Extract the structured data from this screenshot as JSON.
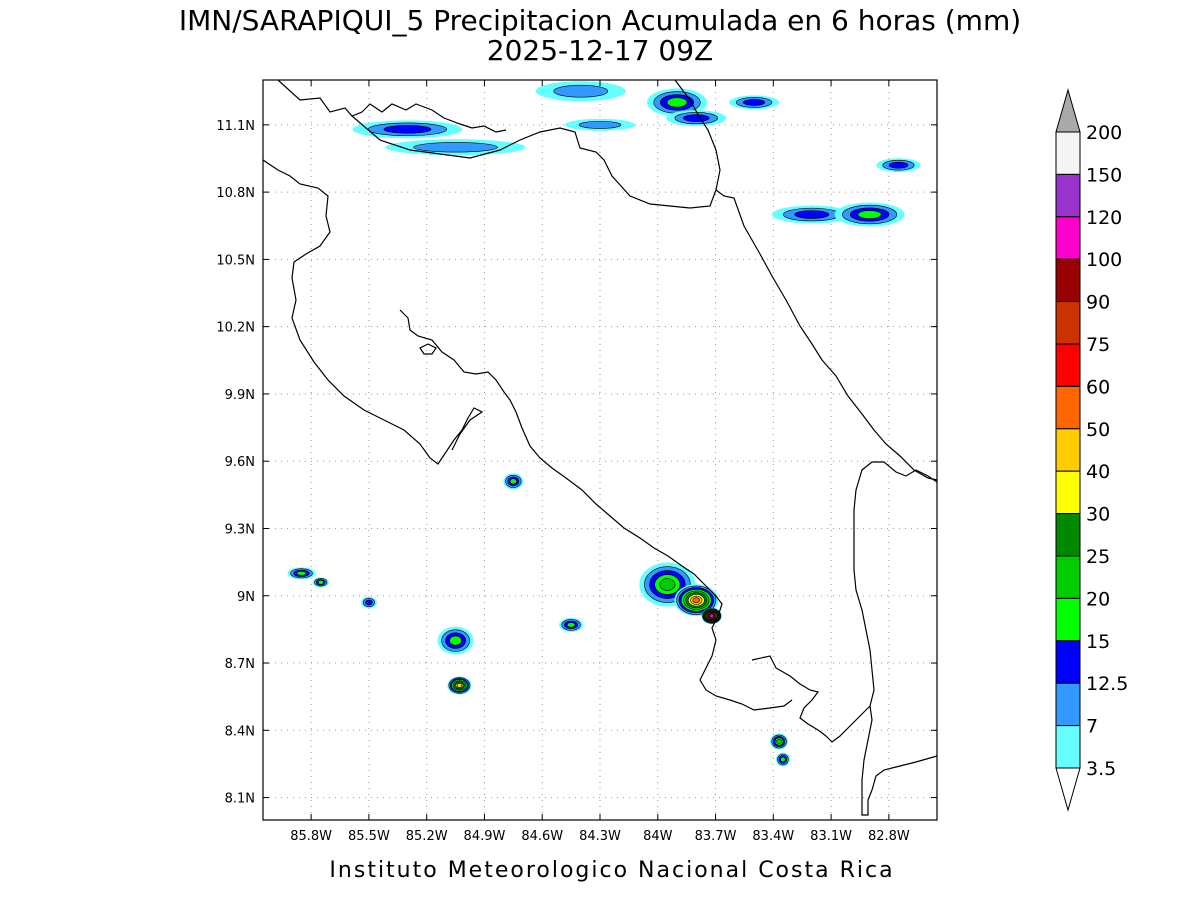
{
  "header": {
    "title_line1": "IMN/SARAPIQUI_5 Precipitacion Acumulada en 6 horas (mm)",
    "title_line2": "2025-12-17 09Z"
  },
  "footer": {
    "credit": "Instituto Meteorologico Nacional Costa Rica"
  },
  "map": {
    "lon_range": [
      -86.05,
      -82.55
    ],
    "lat_range": [
      8.0,
      11.3
    ],
    "lon_ticks": [
      {
        "value": -85.8,
        "label": "85.8W"
      },
      {
        "value": -85.5,
        "label": "85.5W"
      },
      {
        "value": -85.2,
        "label": "85.2W"
      },
      {
        "value": -84.9,
        "label": "84.9W"
      },
      {
        "value": -84.6,
        "label": "84.6W"
      },
      {
        "value": -84.3,
        "label": "84.3W"
      },
      {
        "value": -84.0,
        "label": "84W"
      },
      {
        "value": -83.7,
        "label": "83.7W"
      },
      {
        "value": -83.4,
        "label": "83.4W"
      },
      {
        "value": -83.1,
        "label": "83.1W"
      },
      {
        "value": -82.8,
        "label": "82.8W"
      }
    ],
    "lat_ticks": [
      {
        "value": 8.1,
        "label": "8.1N"
      },
      {
        "value": 8.4,
        "label": "8.4N"
      },
      {
        "value": 8.7,
        "label": "8.7N"
      },
      {
        "value": 9.0,
        "label": "9N"
      },
      {
        "value": 9.3,
        "label": "9.3N"
      },
      {
        "value": 9.6,
        "label": "9.6N"
      },
      {
        "value": 9.9,
        "label": "9.9N"
      },
      {
        "value": 10.2,
        "label": "10.2N"
      },
      {
        "value": 10.5,
        "label": "10.5N"
      },
      {
        "value": 10.8,
        "label": "10.8N"
      },
      {
        "value": 11.1,
        "label": "11.1N"
      }
    ],
    "grid": "dotted",
    "colors": {
      "coastline": "#000000",
      "grid": "#9a9a9a"
    }
  },
  "colorbar": {
    "placement": "right",
    "levels": [
      {
        "label": "3.5",
        "color": "#66ffff"
      },
      {
        "label": "7",
        "color": "#3399ff"
      },
      {
        "label": "12.5",
        "color": "#0000ff"
      },
      {
        "label": "15",
        "color": "#00ff00"
      },
      {
        "label": "20",
        "color": "#00cc00"
      },
      {
        "label": "25",
        "color": "#008800"
      },
      {
        "label": "30",
        "color": "#ffff00"
      },
      {
        "label": "40",
        "color": "#ffcc00"
      },
      {
        "label": "50",
        "color": "#ff6600"
      },
      {
        "label": "60",
        "color": "#ff0000"
      },
      {
        "label": "75",
        "color": "#cc3300"
      },
      {
        "label": "90",
        "color": "#990000"
      },
      {
        "label": "100",
        "color": "#ff00cc"
      },
      {
        "label": "120",
        "color": "#9933cc"
      },
      {
        "label": "150",
        "color": "#f4f4f4"
      },
      {
        "label": "200",
        "color": "#aaaaaa"
      }
    ],
    "top_triangle_color": "#aaaaaa",
    "bottom_triangle_color": "#ffffff"
  },
  "precip_cells": [
    {
      "lon": -85.3,
      "lat": 11.08,
      "level": 2,
      "rx": 55,
      "ry": 9
    },
    {
      "lon": -85.05,
      "lat": 11.0,
      "level": 1,
      "rx": 70,
      "ry": 8
    },
    {
      "lon": -84.4,
      "lat": 11.25,
      "level": 1,
      "rx": 45,
      "ry": 10
    },
    {
      "lon": -84.3,
      "lat": 11.1,
      "level": 1,
      "rx": 35,
      "ry": 6
    },
    {
      "lon": -83.9,
      "lat": 11.2,
      "level": 3,
      "rx": 30,
      "ry": 14
    },
    {
      "lon": -83.8,
      "lat": 11.13,
      "level": 2,
      "rx": 30,
      "ry": 8
    },
    {
      "lon": -83.5,
      "lat": 11.2,
      "level": 2,
      "rx": 25,
      "ry": 7
    },
    {
      "lon": -83.2,
      "lat": 10.7,
      "level": 2,
      "rx": 40,
      "ry": 9
    },
    {
      "lon": -82.9,
      "lat": 10.7,
      "level": 3,
      "rx": 35,
      "ry": 12
    },
    {
      "lon": -82.75,
      "lat": 10.92,
      "level": 2,
      "rx": 22,
      "ry": 7
    },
    {
      "lon": -84.75,
      "lat": 9.51,
      "level": 3,
      "rx": 10,
      "ry": 8
    },
    {
      "lon": -85.85,
      "lat": 9.1,
      "level": 3,
      "rx": 14,
      "ry": 6
    },
    {
      "lon": -85.75,
      "lat": 9.06,
      "level": 3,
      "rx": 8,
      "ry": 5
    },
    {
      "lon": -85.5,
      "lat": 8.97,
      "level": 2,
      "rx": 8,
      "ry": 6
    },
    {
      "lon": -85.05,
      "lat": 8.8,
      "level": 3,
      "rx": 18,
      "ry": 14
    },
    {
      "lon": -85.03,
      "lat": 8.6,
      "level": 7,
      "rx": 12,
      "ry": 9
    },
    {
      "lon": -84.45,
      "lat": 8.87,
      "level": 3,
      "rx": 12,
      "ry": 7
    },
    {
      "lon": -83.95,
      "lat": 9.05,
      "level": 4,
      "rx": 28,
      "ry": 22
    },
    {
      "lon": -83.8,
      "lat": 8.98,
      "level": 8,
      "rx": 22,
      "ry": 16
    },
    {
      "lon": -83.72,
      "lat": 8.91,
      "level": 12,
      "rx": 10,
      "ry": 8
    },
    {
      "lon": -83.37,
      "lat": 8.35,
      "level": 4,
      "rx": 9,
      "ry": 8
    },
    {
      "lon": -83.35,
      "lat": 8.27,
      "level": 3,
      "rx": 7,
      "ry": 7
    }
  ]
}
